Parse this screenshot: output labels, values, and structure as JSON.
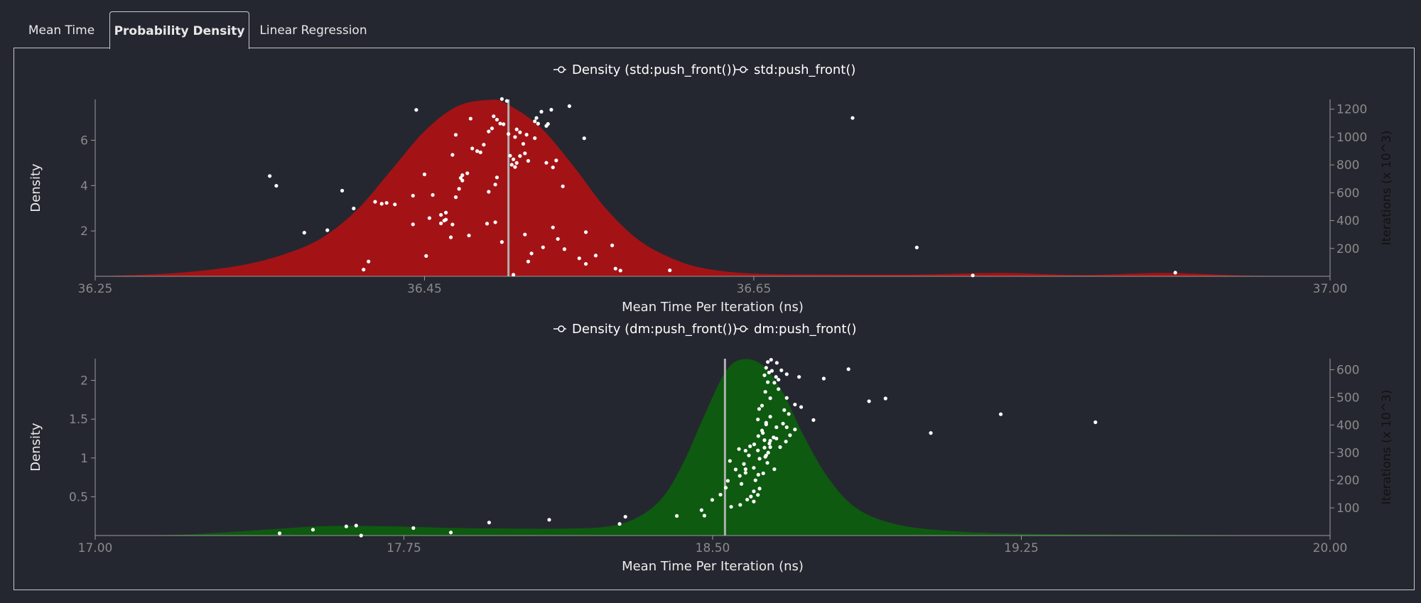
{
  "tabs": [
    {
      "label": "Mean Time",
      "active": false
    },
    {
      "label": "Probability Density",
      "active": true
    },
    {
      "label": "Linear Regression",
      "active": false
    }
  ],
  "chart_data": [
    {
      "type": "area",
      "legend": [
        "Density (std:push_front())",
        "std:push_front()"
      ],
      "xlabel": "Mean Time Per Iteration (ns)",
      "ylabel": "Density",
      "y2label": "Iterations (x 10^3)",
      "xlim": [
        36.25,
        37.0
      ],
      "ylim": [
        0,
        7.8
      ],
      "y2lim": [
        0,
        1270
      ],
      "xticks": [
        "36.25",
        "36.45",
        "36.65",
        "37.00"
      ],
      "yticks": [
        "2",
        "4",
        "6"
      ],
      "y2ticks": [
        "200",
        "400",
        "600",
        "800",
        "1000",
        "1200"
      ],
      "fill_color": "#a31316",
      "mean_line": 36.501,
      "density_x": [
        36.25,
        36.3,
        36.34,
        36.37,
        36.39,
        36.41,
        36.43,
        36.45,
        36.47,
        36.49,
        36.5,
        36.52,
        36.54,
        36.56,
        36.58,
        36.6,
        36.62,
        36.65,
        36.7,
        36.75,
        36.8,
        36.85,
        36.9,
        36.95,
        37.0
      ],
      "density_y": [
        0,
        0.15,
        0.5,
        1.1,
        1.8,
        3.0,
        4.7,
        6.4,
        7.5,
        7.78,
        7.6,
        6.6,
        4.9,
        3.0,
        1.6,
        0.8,
        0.35,
        0.12,
        0.08,
        0.08,
        0.15,
        0.06,
        0.15,
        0.03,
        0
      ],
      "points": [
        [
          36.356,
          720
        ],
        [
          36.36,
          650
        ],
        [
          36.377,
          313
        ],
        [
          36.391,
          331
        ],
        [
          36.4,
          615
        ],
        [
          36.407,
          487
        ],
        [
          36.413,
          48
        ],
        [
          36.416,
          106
        ],
        [
          36.42,
          535
        ],
        [
          36.424,
          521
        ],
        [
          36.427,
          527
        ],
        [
          36.432,
          516
        ],
        [
          36.443,
          373
        ],
        [
          36.443,
          579
        ],
        [
          36.445,
          1195
        ],
        [
          36.451,
          146
        ],
        [
          36.45,
          732
        ],
        [
          36.453,
          418
        ],
        [
          36.455,
          584
        ],
        [
          36.46,
          441
        ],
        [
          36.46,
          380
        ],
        [
          36.462,
          400
        ],
        [
          36.463,
          407
        ],
        [
          36.463,
          457
        ],
        [
          36.466,
          280
        ],
        [
          36.467,
          372
        ],
        [
          36.467,
          872
        ],
        [
          36.469,
          1016
        ],
        [
          36.469,
          568
        ],
        [
          36.471,
          628
        ],
        [
          36.472,
          706
        ],
        [
          36.473,
          688
        ],
        [
          36.473,
          726
        ],
        [
          36.476,
          740
        ],
        [
          36.477,
          293
        ],
        [
          36.478,
          1132
        ],
        [
          36.479,
          918
        ],
        [
          36.482,
          899
        ],
        [
          36.484,
          890
        ],
        [
          36.486,
          945
        ],
        [
          36.488,
          378
        ],
        [
          36.489,
          1040
        ],
        [
          36.489,
          607
        ],
        [
          36.491,
          1062
        ],
        [
          36.492,
          1149
        ],
        [
          36.493,
          659
        ],
        [
          36.493,
          388
        ],
        [
          36.494,
          710
        ],
        [
          36.494,
          1125
        ],
        [
          36.496,
          1097
        ],
        [
          36.497,
          1273
        ],
        [
          36.497,
          246
        ],
        [
          36.498,
          1092
        ],
        [
          36.5,
          1259
        ],
        [
          36.501,
          1022
        ],
        [
          36.502,
          866
        ],
        [
          36.503,
          801
        ],
        [
          36.504,
          840
        ],
        [
          36.504,
          11
        ],
        [
          36.505,
          1000
        ],
        [
          36.505,
          785
        ],
        [
          36.506,
          1055
        ],
        [
          36.506,
          814
        ],
        [
          36.508,
          1034
        ],
        [
          36.508,
          864
        ],
        [
          36.51,
          951
        ],
        [
          36.511,
          883
        ],
        [
          36.511,
          300
        ],
        [
          36.512,
          1017
        ],
        [
          36.513,
          106
        ],
        [
          36.513,
          829
        ],
        [
          36.515,
          164
        ],
        [
          36.517,
          1113
        ],
        [
          36.517,
          992
        ],
        [
          36.518,
          1137
        ],
        [
          36.519,
          1096
        ],
        [
          36.521,
          1182
        ],
        [
          36.522,
          208
        ],
        [
          36.524,
          1080
        ],
        [
          36.524,
          815
        ],
        [
          36.525,
          1094
        ],
        [
          36.527,
          1196
        ],
        [
          36.528,
          351
        ],
        [
          36.528,
          782
        ],
        [
          36.53,
          832
        ],
        [
          36.531,
          268
        ],
        [
          36.534,
          646
        ],
        [
          36.535,
          195
        ],
        [
          36.538,
          1222
        ],
        [
          36.544,
          129
        ],
        [
          36.547,
          991
        ],
        [
          36.548,
          89
        ],
        [
          36.548,
          317
        ],
        [
          36.554,
          149
        ],
        [
          36.564,
          222
        ],
        [
          36.566,
          55
        ],
        [
          36.569,
          41
        ],
        [
          36.599,
          43
        ],
        [
          36.71,
          1137
        ],
        [
          36.749,
          207
        ],
        [
          36.783,
          6
        ],
        [
          36.906,
          26
        ]
      ]
    },
    {
      "type": "area",
      "legend": [
        "Density (dm:push_front())",
        "dm:push_front()"
      ],
      "xlabel": "Mean Time Per Iteration (ns)",
      "ylabel": "Density",
      "y2label": "Iterations (x 10^3)",
      "xlim": [
        17.0,
        20.0
      ],
      "ylim": [
        0,
        2.28
      ],
      "y2lim": [
        0,
        640
      ],
      "xticks": [
        "17.00",
        "17.75",
        "18.50",
        "19.25",
        "20.00"
      ],
      "yticks": [
        "0.5",
        "1",
        "1.5",
        "2"
      ],
      "y2ticks": [
        "100",
        "200",
        "300",
        "400",
        "500",
        "600"
      ],
      "fill_color": "#0e5a10",
      "mean_line": 18.53,
      "density_x": [
        17.0,
        17.2,
        17.4,
        17.55,
        17.7,
        17.85,
        18.0,
        18.15,
        18.25,
        18.32,
        18.38,
        18.43,
        18.48,
        18.53,
        18.57,
        18.62,
        18.67,
        18.72,
        18.78,
        18.85,
        18.95,
        19.1,
        19.3,
        19.6,
        20.0
      ],
      "density_y": [
        0,
        0.01,
        0.07,
        0.12,
        0.12,
        0.1,
        0.09,
        0.09,
        0.12,
        0.24,
        0.5,
        0.95,
        1.55,
        2.1,
        2.27,
        2.2,
        1.85,
        1.3,
        0.75,
        0.35,
        0.14,
        0.05,
        0.02,
        0.01,
        0
      ],
      "points": [
        [
          17.448,
          8
        ],
        [
          17.529,
          21
        ],
        [
          17.61,
          33
        ],
        [
          17.634,
          36
        ],
        [
          17.646,
          0
        ],
        [
          17.773,
          27
        ],
        [
          17.864,
          11
        ],
        [
          17.957,
          47
        ],
        [
          18.103,
          57
        ],
        [
          18.274,
          42
        ],
        [
          18.288,
          68
        ],
        [
          18.413,
          71
        ],
        [
          18.473,
          92
        ],
        [
          18.48,
          72
        ],
        [
          18.499,
          129
        ],
        [
          18.532,
          173
        ],
        [
          18.537,
          198
        ],
        [
          18.519,
          148
        ],
        [
          18.545,
          104
        ],
        [
          18.567,
          111
        ],
        [
          18.584,
          130
        ],
        [
          18.593,
          141
        ],
        [
          18.6,
          123
        ],
        [
          18.61,
          147
        ],
        [
          18.542,
          270
        ],
        [
          18.556,
          239
        ],
        [
          18.566,
          216
        ],
        [
          18.58,
          227
        ],
        [
          18.57,
          187
        ],
        [
          18.6,
          160
        ],
        [
          18.614,
          170
        ],
        [
          18.58,
          307
        ],
        [
          18.591,
          323
        ],
        [
          18.601,
          330
        ],
        [
          18.614,
          278
        ],
        [
          18.626,
          345
        ],
        [
          18.63,
          290
        ],
        [
          18.64,
          320
        ],
        [
          18.633,
          263
        ],
        [
          18.611,
          220
        ],
        [
          18.6,
          245
        ],
        [
          18.623,
          225
        ],
        [
          18.604,
          200
        ],
        [
          18.588,
          290
        ],
        [
          18.576,
          259
        ],
        [
          18.564,
          313
        ],
        [
          18.58,
          240
        ],
        [
          18.611,
          360
        ],
        [
          18.62,
          380
        ],
        [
          18.63,
          402
        ],
        [
          18.64,
          430
        ],
        [
          18.613,
          458
        ],
        [
          18.62,
          470
        ],
        [
          18.64,
          497
        ],
        [
          18.628,
          520
        ],
        [
          18.634,
          555
        ],
        [
          18.65,
          553
        ],
        [
          18.626,
          580
        ],
        [
          18.637,
          590
        ],
        [
          18.644,
          596
        ],
        [
          18.654,
          574
        ],
        [
          18.66,
          564
        ],
        [
          18.667,
          598
        ],
        [
          18.68,
          584
        ],
        [
          18.634,
          628
        ],
        [
          18.642,
          636
        ],
        [
          18.656,
          625
        ],
        [
          18.63,
          607
        ],
        [
          18.66,
          530
        ],
        [
          18.68,
          498
        ],
        [
          18.7,
          474
        ],
        [
          18.674,
          454
        ],
        [
          18.685,
          440
        ],
        [
          18.61,
          420
        ],
        [
          18.63,
          408
        ],
        [
          18.655,
          392
        ],
        [
          18.671,
          405
        ],
        [
          18.7,
          384
        ],
        [
          18.622,
          371
        ],
        [
          18.648,
          355
        ],
        [
          18.664,
          320
        ],
        [
          18.626,
          318
        ],
        [
          18.64,
          343
        ],
        [
          18.655,
          351
        ],
        [
          18.635,
          300
        ],
        [
          18.61,
          308
        ],
        [
          18.65,
          240
        ],
        [
          18.628,
          285
        ],
        [
          18.638,
          333
        ],
        [
          18.678,
          340
        ],
        [
          18.688,
          363
        ],
        [
          18.68,
          392
        ],
        [
          18.715,
          465
        ],
        [
          18.745,
          418
        ],
        [
          18.71,
          574
        ],
        [
          18.77,
          568
        ],
        [
          18.83,
          602
        ],
        [
          18.88,
          486
        ],
        [
          18.92,
          496
        ],
        [
          19.03,
          371
        ],
        [
          19.2,
          439
        ],
        [
          19.43,
          410
        ]
      ]
    }
  ]
}
